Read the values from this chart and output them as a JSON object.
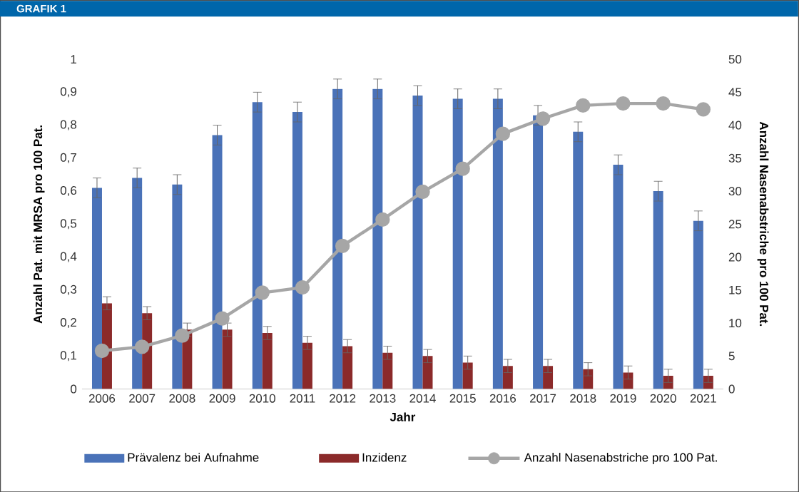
{
  "chart_data": {
    "type": "bar",
    "title": "GRAFIK 1",
    "xlabel": "Jahr",
    "ylabel": "Anzahl Pat. mit MRSA pro 100 Pat.",
    "y2label": "Anzahl Nasenabstriche pro 100 Pat.",
    "categories": [
      "2006",
      "2007",
      "2008",
      "2009",
      "2010",
      "2011",
      "2012",
      "2013",
      "2014",
      "2015",
      "2016",
      "2017",
      "2018",
      "2019",
      "2020",
      "2021"
    ],
    "series": [
      {
        "name": "Prävalenz bei Aufnahme",
        "color": "#4a72b8",
        "values": [
          0.61,
          0.64,
          0.62,
          0.77,
          0.87,
          0.84,
          0.91,
          0.91,
          0.89,
          0.88,
          0.88,
          0.83,
          0.78,
          0.68,
          0.6,
          0.51
        ],
        "errors": [
          0.03,
          0.03,
          0.03,
          0.03,
          0.03,
          0.03,
          0.03,
          0.03,
          0.03,
          0.03,
          0.03,
          0.03,
          0.03,
          0.03,
          0.03,
          0.03
        ]
      },
      {
        "name": "Inzidenz",
        "color": "#8b2a2a",
        "values": [
          0.26,
          0.23,
          0.18,
          0.18,
          0.17,
          0.14,
          0.13,
          0.11,
          0.1,
          0.08,
          0.07,
          0.07,
          0.06,
          0.05,
          0.04,
          0.04
        ],
        "errors": [
          0.02,
          0.02,
          0.02,
          0.02,
          0.02,
          0.02,
          0.02,
          0.02,
          0.02,
          0.02,
          0.02,
          0.02,
          0.02,
          0.02,
          0.02,
          0.02
        ]
      },
      {
        "name": "Anzahl Nasenabstriche pro 100 Pat.",
        "type": "line",
        "axis": "y2",
        "marker": "circle",
        "color": "#a6a6a6",
        "values": [
          5.8,
          6.4,
          8.1,
          10.7,
          14.6,
          15.4,
          21.7,
          25.7,
          29.9,
          33.4,
          38.7,
          41.0,
          43.0,
          43.3,
          43.3,
          42.4
        ]
      }
    ],
    "ylim": [
      0,
      1
    ],
    "yticks": [
      0,
      {
        "value": 0.1,
        "label": "0,1"
      },
      {
        "value": 0.2,
        "label": "0,2"
      },
      {
        "value": 0.3,
        "label": "0,3"
      },
      {
        "value": 0.4,
        "label": "0,4"
      },
      {
        "value": 0.5,
        "label": "0,5"
      },
      {
        "value": 0.6,
        "label": "0,6"
      },
      {
        "value": 0.7,
        "label": "0,7"
      },
      {
        "value": 0.8,
        "label": "0,8"
      },
      {
        "value": 0.9,
        "label": "0,9"
      },
      1
    ],
    "y2lim": [
      0,
      50
    ],
    "y2ticks": [
      0,
      5,
      10,
      15,
      20,
      25,
      30,
      35,
      40,
      45,
      50
    ],
    "legend": "bottom"
  }
}
